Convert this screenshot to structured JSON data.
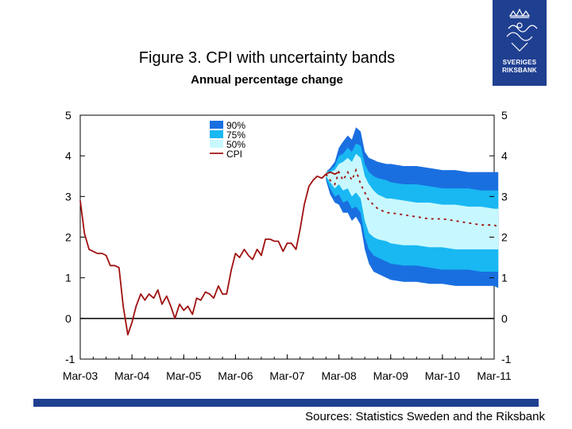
{
  "header": {
    "title": "Figure 3. CPI with uncertainty bands",
    "subtitle": "Annual percentage change"
  },
  "logo": {
    "line1": "SVERIGES",
    "line2": "RIKSBANK"
  },
  "footer": {
    "source": "Sources: Statistics Sweden and the Riksbank"
  },
  "colors": {
    "band90": "#1a6fe0",
    "band75": "#19b8f2",
    "band50": "#c8f8ff",
    "cpi": "#a01010",
    "brand": "#1f3f91"
  },
  "chart_data": {
    "type": "area",
    "title": "Figure 3. CPI with uncertainty bands",
    "subtitle": "Annual percentage change",
    "ylim": [
      -1,
      5
    ],
    "y_ticks": [
      5,
      4,
      3,
      2,
      1,
      0,
      -1
    ],
    "y_tick_labels": [
      "5",
      "4",
      "3",
      "2",
      "1",
      "0",
      "-1"
    ],
    "x_range": [
      2003.0,
      2011.0
    ],
    "x_ticks": [
      2003,
      2004,
      2005,
      2006,
      2007,
      2008,
      2009,
      2010,
      2011
    ],
    "x_tick_labels": [
      "Mar-03",
      "Mar-04",
      "Mar-05",
      "Mar-06",
      "Mar-07",
      "Mar-08",
      "Mar-09",
      "Mar-10",
      "Mar-11"
    ],
    "legend": {
      "placement": "top-center",
      "entries": [
        "90%",
        "75%",
        "50%",
        "CPI"
      ]
    },
    "cpi": {
      "name": "CPI",
      "x": [
        2003.0,
        2003.08,
        2003.17,
        2003.25,
        2003.33,
        2003.42,
        2003.5,
        2003.58,
        2003.67,
        2003.75,
        2003.83,
        2003.92,
        2004.0,
        2004.08,
        2004.17,
        2004.25,
        2004.33,
        2004.42,
        2004.5,
        2004.58,
        2004.67,
        2004.75,
        2004.83,
        2004.92,
        2005.0,
        2005.08,
        2005.17,
        2005.25,
        2005.33,
        2005.42,
        2005.5,
        2005.58,
        2005.67,
        2005.75,
        2005.83,
        2005.92,
        2006.0,
        2006.08,
        2006.17,
        2006.25,
        2006.33,
        2006.42,
        2006.5,
        2006.58,
        2006.67,
        2006.75,
        2006.83,
        2006.92,
        2007.0,
        2007.08,
        2007.17,
        2007.25,
        2007.33,
        2007.42,
        2007.5,
        2007.58,
        2007.67,
        2007.75,
        2007.83,
        2007.92,
        2008.0
      ],
      "values": [
        2.9,
        2.1,
        1.7,
        1.65,
        1.6,
        1.6,
        1.55,
        1.3,
        1.3,
        1.25,
        0.3,
        -0.4,
        -0.1,
        0.3,
        0.6,
        0.45,
        0.6,
        0.5,
        0.7,
        0.35,
        0.55,
        0.3,
        0.0,
        0.35,
        0.2,
        0.3,
        0.1,
        0.5,
        0.45,
        0.65,
        0.6,
        0.5,
        0.8,
        0.6,
        0.6,
        1.2,
        1.6,
        1.5,
        1.7,
        1.55,
        1.45,
        1.7,
        1.55,
        1.95,
        1.95,
        1.9,
        1.9,
        1.65,
        1.85,
        1.85,
        1.7,
        2.2,
        2.8,
        3.25,
        3.4,
        3.5,
        3.45,
        3.55,
        3.6,
        3.55,
        3.6
      ]
    },
    "forecast": {
      "name": "CPI forecast (dashed)",
      "x": [
        2007.75,
        2007.83,
        2007.92,
        2008.0,
        2008.08,
        2008.17,
        2008.25,
        2008.33,
        2008.42,
        2008.5,
        2008.58,
        2008.75,
        2008.92,
        2009.0,
        2009.25,
        2009.5,
        2009.75,
        2010.0,
        2010.25,
        2010.5,
        2010.75,
        2011.0,
        2011.08
      ],
      "values": [
        3.55,
        3.4,
        3.3,
        3.6,
        3.4,
        3.6,
        3.4,
        3.65,
        3.3,
        3.1,
        2.9,
        2.7,
        2.6,
        2.6,
        2.55,
        2.5,
        2.45,
        2.45,
        2.4,
        2.35,
        2.3,
        2.3,
        2.25
      ]
    },
    "bands": {
      "x": [
        2007.75,
        2007.83,
        2007.92,
        2008.0,
        2008.08,
        2008.17,
        2008.25,
        2008.33,
        2008.42,
        2008.5,
        2008.58,
        2008.67,
        2008.75,
        2008.92,
        2009.0,
        2009.25,
        2009.5,
        2009.75,
        2010.0,
        2010.25,
        2010.5,
        2010.75,
        2011.0,
        2011.08
      ],
      "upper90": [
        3.6,
        3.7,
        3.85,
        4.2,
        4.35,
        4.5,
        4.4,
        4.7,
        4.6,
        4.1,
        3.95,
        3.9,
        3.85,
        3.8,
        3.8,
        3.75,
        3.75,
        3.7,
        3.65,
        3.65,
        3.6,
        3.6,
        3.6,
        3.6
      ],
      "upper75": [
        3.6,
        3.65,
        3.75,
        4.0,
        4.05,
        4.2,
        4.1,
        4.3,
        4.25,
        3.8,
        3.6,
        3.5,
        3.45,
        3.4,
        3.35,
        3.3,
        3.3,
        3.25,
        3.2,
        3.2,
        3.2,
        3.15,
        3.15,
        3.15
      ],
      "upper50": [
        3.6,
        3.6,
        3.65,
        3.8,
        3.85,
        3.95,
        3.85,
        4.05,
        3.95,
        3.5,
        3.3,
        3.15,
        3.05,
        2.95,
        2.95,
        2.9,
        2.85,
        2.85,
        2.8,
        2.8,
        2.75,
        2.75,
        2.7,
        2.7
      ],
      "lower50": [
        3.5,
        3.35,
        3.2,
        3.3,
        3.15,
        3.2,
        3.0,
        3.1,
        2.95,
        2.4,
        2.1,
        2.0,
        1.95,
        1.9,
        1.85,
        1.8,
        1.8,
        1.75,
        1.75,
        1.7,
        1.7,
        1.7,
        1.7,
        1.7
      ],
      "lower75": [
        3.45,
        3.2,
        3.0,
        3.05,
        2.85,
        2.9,
        2.7,
        2.75,
        2.6,
        2.0,
        1.7,
        1.55,
        1.5,
        1.4,
        1.35,
        1.3,
        1.3,
        1.25,
        1.2,
        1.2,
        1.2,
        1.15,
        1.15,
        1.15
      ],
      "lower90": [
        3.4,
        3.05,
        2.85,
        2.8,
        2.6,
        2.6,
        2.4,
        2.5,
        2.3,
        1.7,
        1.35,
        1.15,
        1.1,
        1.0,
        0.95,
        0.9,
        0.9,
        0.85,
        0.85,
        0.8,
        0.8,
        0.8,
        0.8,
        0.75
      ]
    }
  }
}
